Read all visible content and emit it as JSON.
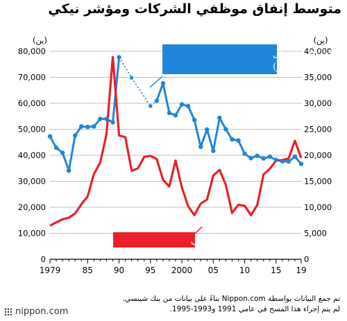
{
  "title": "متوسط إنفاق موظفي الشركات ومؤشر نيكي",
  "source_note": {
    "line1": "تم جمع البيانات بواسطة Nippon.com بناءً على بيانات من بنك شينسي.",
    "line2": "لم يتم إجراء هذا المسح في عامي 1991 و1993-1995."
  },
  "logo": {
    "text": "nippon.com",
    "icon": "dotted-square-logo-icon"
  },
  "colors": {
    "spending": "#1f86d9",
    "nikkei": "#e8202a",
    "grid": "#bdbdbd",
    "axis": "#000000"
  },
  "chart_data": {
    "type": "line",
    "x_ticks": [
      {
        "value": 1979,
        "label": "1979"
      },
      {
        "value": 1985,
        "label": "85"
      },
      {
        "value": 1990,
        "label": "90"
      },
      {
        "value": 1995,
        "label": "95"
      },
      {
        "value": 2000,
        "label": "2000"
      },
      {
        "value": 2005,
        "label": "05"
      },
      {
        "value": 2010,
        "label": "10"
      },
      {
        "value": 2015,
        "label": "15"
      },
      {
        "value": 2019,
        "label": "19"
      }
    ],
    "xlim": [
      1979,
      2019
    ],
    "left_axis": {
      "unit": "(ين)",
      "ylim": [
        0,
        80000
      ],
      "ticks": [
        "0",
        "10,000",
        "20,000",
        "30,000",
        "40,000",
        "50,000",
        "60,000",
        "70,000",
        "80,000"
      ]
    },
    "right_axis": {
      "unit": "(ين)",
      "ylim": [
        0,
        40000
      ],
      "ticks": [
        "0",
        "5,000",
        "10,000",
        "15,000",
        "20,000",
        "25,000",
        "30,000",
        "35,000",
        "40,000"
      ]
    },
    "grid": true,
    "series": [
      {
        "name": "إنفاق موظفي الشركات الرجال",
        "name_note": "(المحور الأيسر)",
        "axis": "left",
        "color": "#1f86d9",
        "markers": true,
        "segments": [
          [
            {
              "x": 1979,
              "y": 47300
            },
            {
              "x": 1980,
              "y": 42900
            },
            {
              "x": 1981,
              "y": 41000
            },
            {
              "x": 1982,
              "y": 34100
            },
            {
              "x": 1983,
              "y": 47600
            },
            {
              "x": 1984,
              "y": 51100
            },
            {
              "x": 1985,
              "y": 50900
            },
            {
              "x": 1986,
              "y": 51100
            },
            {
              "x": 1987,
              "y": 54000
            },
            {
              "x": 1988,
              "y": 54000
            },
            {
              "x": 1989,
              "y": 52700
            },
            {
              "x": 1990,
              "y": 77700
            }
          ],
          [
            {
              "x": 1996,
              "y": 61000
            },
            {
              "x": 1997,
              "y": 67700
            },
            {
              "x": 1998,
              "y": 56300
            },
            {
              "x": 1999,
              "y": 55400
            },
            {
              "x": 2000,
              "y": 59600
            },
            {
              "x": 2001,
              "y": 58900
            },
            {
              "x": 2002,
              "y": 53600
            },
            {
              "x": 2003,
              "y": 43300
            },
            {
              "x": 2004,
              "y": 49900
            },
            {
              "x": 2005,
              "y": 41700
            },
            {
              "x": 2006,
              "y": 54400
            },
            {
              "x": 2007,
              "y": 50000
            },
            {
              "x": 2008,
              "y": 46100
            },
            {
              "x": 2009,
              "y": 45700
            },
            {
              "x": 2010,
              "y": 40600
            },
            {
              "x": 2011,
              "y": 38900
            },
            {
              "x": 2012,
              "y": 39800
            },
            {
              "x": 2013,
              "y": 38800
            },
            {
              "x": 2014,
              "y": 39500
            },
            {
              "x": 2015,
              "y": 38200
            },
            {
              "x": 2016,
              "y": 37700
            },
            {
              "x": 2017,
              "y": 37600
            },
            {
              "x": 2018,
              "y": 39500
            },
            {
              "x": 2019,
              "y": 36700
            }
          ]
        ],
        "estimated_points": [
          {
            "x": 1992,
            "y": 69800
          },
          {
            "x": 1995,
            "y": 58900
          },
          {
            "x": 1996,
            "y": 61000
          }
        ]
      },
      {
        "name": "متوسط مؤشر نيكي",
        "axis": "right",
        "color": "#e8202a",
        "markers": false,
        "points": [
          {
            "x": 1979,
            "y": 6500
          },
          {
            "x": 1980,
            "y": 7100
          },
          {
            "x": 1981,
            "y": 7700
          },
          {
            "x": 1982,
            "y": 8000
          },
          {
            "x": 1983,
            "y": 8800
          },
          {
            "x": 1984,
            "y": 10600
          },
          {
            "x": 1985,
            "y": 12100
          },
          {
            "x": 1986,
            "y": 16400
          },
          {
            "x": 1987,
            "y": 18600
          },
          {
            "x": 1988,
            "y": 24000
          },
          {
            "x": 1989,
            "y": 38900
          },
          {
            "x": 1990,
            "y": 23800
          },
          {
            "x": 1991,
            "y": 23500
          },
          {
            "x": 1992,
            "y": 17000
          },
          {
            "x": 1993,
            "y": 17500
          },
          {
            "x": 1994,
            "y": 19700
          },
          {
            "x": 1995,
            "y": 19900
          },
          {
            "x": 1996,
            "y": 19300
          },
          {
            "x": 1997,
            "y": 15300
          },
          {
            "x": 1998,
            "y": 14000
          },
          {
            "x": 1999,
            "y": 19000
          },
          {
            "x": 2000,
            "y": 13800
          },
          {
            "x": 2001,
            "y": 10200
          },
          {
            "x": 2002,
            "y": 8500
          },
          {
            "x": 2003,
            "y": 10700
          },
          {
            "x": 2004,
            "y": 11500
          },
          {
            "x": 2005,
            "y": 16100
          },
          {
            "x": 2006,
            "y": 17200
          },
          {
            "x": 2007,
            "y": 14300
          },
          {
            "x": 2008,
            "y": 8900
          },
          {
            "x": 2009,
            "y": 10500
          },
          {
            "x": 2010,
            "y": 10300
          },
          {
            "x": 2011,
            "y": 8500
          },
          {
            "x": 2012,
            "y": 10400
          },
          {
            "x": 2013,
            "y": 16300
          },
          {
            "x": 2014,
            "y": 17400
          },
          {
            "x": 2015,
            "y": 19000
          },
          {
            "x": 2016,
            "y": 19100
          },
          {
            "x": 2017,
            "y": 19400
          },
          {
            "x": 2018,
            "y": 22800
          },
          {
            "x": 2019,
            "y": 19500
          }
        ]
      }
    ]
  }
}
